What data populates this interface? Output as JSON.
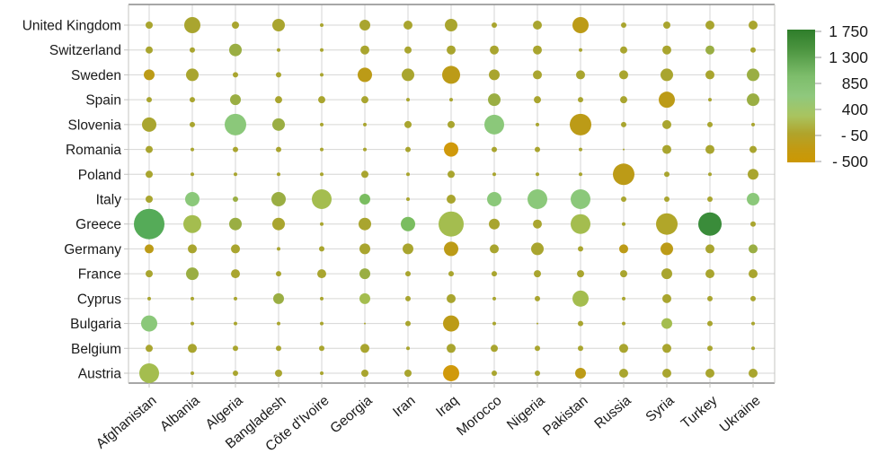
{
  "chart_data": {
    "type": "bubble-matrix",
    "title": "",
    "x_categories": [
      "Afghanistan",
      "Albania",
      "Algeria",
      "Bangladesh",
      "Côte d'Ivoire",
      "Georgia",
      "Iran",
      "Iraq",
      "Morocco",
      "Nigeria",
      "Pakistan",
      "Russia",
      "Syria",
      "Turkey",
      "Ukraine"
    ],
    "y_categories": [
      "United Kingdom",
      "Switzerland",
      "Sweden",
      "Spain",
      "Slovenia",
      "Romania",
      "Poland",
      "Italy",
      "Greece",
      "Germany",
      "France",
      "Cyprus",
      "Bulgaria",
      "Belgium",
      "Austria"
    ],
    "palette": {
      "o": "#a9a52f",
      "o2": "#b1a629",
      "dy": "#bc9b17",
      "or": "#d0990b",
      "og": "#9aae43",
      "yg": "#a4bd4f",
      "lg": "#8bc87a",
      "g2": "#7abd60",
      "g": "#55ab58",
      "dg": "#3a8c3a"
    },
    "bubbles": [
      [
        [
          4,
          "o"
        ],
        [
          9,
          "o"
        ],
        [
          4,
          "o"
        ],
        [
          7,
          "o"
        ],
        [
          2,
          "o"
        ],
        [
          6,
          "o"
        ],
        [
          5,
          "o"
        ],
        [
          7,
          "o"
        ],
        [
          3,
          "o"
        ],
        [
          5,
          "o"
        ],
        [
          9,
          "dy"
        ],
        [
          3,
          "o"
        ],
        [
          4,
          "o"
        ],
        [
          5,
          "o"
        ],
        [
          5,
          "o"
        ]
      ],
      [
        [
          4,
          "o"
        ],
        [
          3,
          "o"
        ],
        [
          7,
          "og"
        ],
        [
          2,
          "o"
        ],
        [
          2,
          "o"
        ],
        [
          5,
          "o"
        ],
        [
          4,
          "o"
        ],
        [
          5,
          "o"
        ],
        [
          5,
          "o"
        ],
        [
          5,
          "o"
        ],
        [
          2,
          "o"
        ],
        [
          4,
          "o"
        ],
        [
          5,
          "o"
        ],
        [
          5,
          "og"
        ],
        [
          3,
          "o"
        ]
      ],
      [
        [
          6,
          "dy"
        ],
        [
          7,
          "o"
        ],
        [
          3,
          "o"
        ],
        [
          3,
          "o"
        ],
        [
          2,
          "o"
        ],
        [
          8,
          "dy"
        ],
        [
          7,
          "o"
        ],
        [
          10,
          "dy"
        ],
        [
          6,
          "o"
        ],
        [
          5,
          "o"
        ],
        [
          5,
          "o"
        ],
        [
          5,
          "o"
        ],
        [
          7,
          "o"
        ],
        [
          5,
          "o"
        ],
        [
          7,
          "og"
        ]
      ],
      [
        [
          3,
          "o"
        ],
        [
          3,
          "o"
        ],
        [
          6,
          "og"
        ],
        [
          4,
          "o"
        ],
        [
          4,
          "o"
        ],
        [
          4,
          "o"
        ],
        [
          2,
          "o"
        ],
        [
          2,
          "o"
        ],
        [
          7,
          "og"
        ],
        [
          4,
          "o"
        ],
        [
          3,
          "o"
        ],
        [
          4,
          "o"
        ],
        [
          9,
          "dy"
        ],
        [
          2,
          "o"
        ],
        [
          7,
          "og"
        ]
      ],
      [
        [
          8,
          "o"
        ],
        [
          3,
          "o"
        ],
        [
          12,
          "lg"
        ],
        [
          7,
          "og"
        ],
        [
          2,
          "o"
        ],
        [
          2,
          "o"
        ],
        [
          4,
          "o"
        ],
        [
          4,
          "o"
        ],
        [
          11,
          "lg"
        ],
        [
          2,
          "o"
        ],
        [
          12,
          "dy"
        ],
        [
          3,
          "o"
        ],
        [
          5,
          "o"
        ],
        [
          3,
          "o"
        ],
        [
          2,
          "o"
        ]
      ],
      [
        [
          4,
          "o"
        ],
        [
          2,
          "o"
        ],
        [
          3,
          "o"
        ],
        [
          3,
          "o"
        ],
        [
          2,
          "o"
        ],
        [
          2,
          "o"
        ],
        [
          3,
          "o"
        ],
        [
          8,
          "or"
        ],
        [
          3,
          "o"
        ],
        [
          3,
          "o"
        ],
        [
          2,
          "o"
        ],
        [
          1,
          "o"
        ],
        [
          5,
          "o"
        ],
        [
          5,
          "o"
        ],
        [
          4,
          "o"
        ]
      ],
      [
        [
          4,
          "o"
        ],
        [
          2,
          "o"
        ],
        [
          2,
          "o"
        ],
        [
          2,
          "o"
        ],
        [
          2,
          "o"
        ],
        [
          4,
          "o"
        ],
        [
          2,
          "o"
        ],
        [
          4,
          "o"
        ],
        [
          2,
          "o"
        ],
        [
          2,
          "o"
        ],
        [
          2,
          "o"
        ],
        [
          12,
          "dy"
        ],
        [
          3,
          "o"
        ],
        [
          2,
          "o"
        ],
        [
          6,
          "o"
        ]
      ],
      [
        [
          4,
          "o"
        ],
        [
          8,
          "lg"
        ],
        [
          3,
          "og"
        ],
        [
          8,
          "og"
        ],
        [
          11,
          "yg"
        ],
        [
          6,
          "g2"
        ],
        [
          2,
          "o"
        ],
        [
          5,
          "o"
        ],
        [
          8,
          "lg"
        ],
        [
          11,
          "lg"
        ],
        [
          11,
          "lg"
        ],
        [
          3,
          "o"
        ],
        [
          3,
          "o"
        ],
        [
          3,
          "o"
        ],
        [
          7,
          "lg"
        ]
      ],
      [
        [
          17,
          "g"
        ],
        [
          10,
          "yg"
        ],
        [
          7,
          "og"
        ],
        [
          7,
          "o"
        ],
        [
          2,
          "o"
        ],
        [
          7,
          "o"
        ],
        [
          8,
          "g2"
        ],
        [
          14,
          "yg"
        ],
        [
          6,
          "o"
        ],
        [
          5,
          "o"
        ],
        [
          11,
          "yg"
        ],
        [
          2,
          "o"
        ],
        [
          12,
          "o2"
        ],
        [
          13,
          "dg"
        ],
        [
          3,
          "o"
        ]
      ],
      [
        [
          5,
          "dy"
        ],
        [
          5,
          "o"
        ],
        [
          5,
          "o"
        ],
        [
          2,
          "o"
        ],
        [
          3,
          "o"
        ],
        [
          6,
          "o"
        ],
        [
          6,
          "o"
        ],
        [
          8,
          "dy"
        ],
        [
          5,
          "o"
        ],
        [
          7,
          "o"
        ],
        [
          3,
          "o"
        ],
        [
          5,
          "dy"
        ],
        [
          7,
          "dy"
        ],
        [
          5,
          "o"
        ],
        [
          5,
          "og"
        ]
      ],
      [
        [
          4,
          "o"
        ],
        [
          7,
          "og"
        ],
        [
          5,
          "o"
        ],
        [
          3,
          "o"
        ],
        [
          5,
          "o"
        ],
        [
          6,
          "og"
        ],
        [
          3,
          "o"
        ],
        [
          3,
          "o"
        ],
        [
          3,
          "o"
        ],
        [
          4,
          "o"
        ],
        [
          4,
          "o"
        ],
        [
          4,
          "o"
        ],
        [
          6,
          "o"
        ],
        [
          5,
          "o"
        ],
        [
          5,
          "o"
        ]
      ],
      [
        [
          2,
          "o"
        ],
        [
          2,
          "o"
        ],
        [
          2,
          "o"
        ],
        [
          6,
          "og"
        ],
        [
          2,
          "o"
        ],
        [
          6,
          "yg"
        ],
        [
          3,
          "o"
        ],
        [
          5,
          "o"
        ],
        [
          2,
          "o"
        ],
        [
          3,
          "o"
        ],
        [
          9,
          "yg"
        ],
        [
          2,
          "o"
        ],
        [
          5,
          "o"
        ],
        [
          3,
          "o"
        ],
        [
          3,
          "o"
        ]
      ],
      [
        [
          9,
          "lg"
        ],
        [
          2,
          "o"
        ],
        [
          2,
          "o"
        ],
        [
          2,
          "o"
        ],
        [
          2,
          "o"
        ],
        [
          1,
          "o"
        ],
        [
          3,
          "o"
        ],
        [
          9,
          "dy"
        ],
        [
          2,
          "o"
        ],
        [
          1,
          "o"
        ],
        [
          3,
          "o"
        ],
        [
          2,
          "o"
        ],
        [
          6,
          "yg"
        ],
        [
          3,
          "o"
        ],
        [
          2,
          "o"
        ]
      ],
      [
        [
          4,
          "o"
        ],
        [
          5,
          "o"
        ],
        [
          3,
          "o"
        ],
        [
          3,
          "o"
        ],
        [
          3,
          "o"
        ],
        [
          5,
          "o"
        ],
        [
          2,
          "o"
        ],
        [
          5,
          "o"
        ],
        [
          4,
          "o"
        ],
        [
          3,
          "o"
        ],
        [
          3,
          "o"
        ],
        [
          5,
          "o"
        ],
        [
          5,
          "o"
        ],
        [
          3,
          "o"
        ],
        [
          2,
          "o"
        ]
      ],
      [
        [
          11,
          "yg"
        ],
        [
          2,
          "o"
        ],
        [
          3,
          "o"
        ],
        [
          4,
          "o"
        ],
        [
          2,
          "o"
        ],
        [
          4,
          "o"
        ],
        [
          4,
          "o"
        ],
        [
          9,
          "or"
        ],
        [
          3,
          "o"
        ],
        [
          3,
          "o"
        ],
        [
          6,
          "dy"
        ],
        [
          5,
          "o"
        ],
        [
          5,
          "o"
        ],
        [
          5,
          "o"
        ],
        [
          5,
          "o"
        ]
      ]
    ],
    "legend": {
      "tick_labels": [
        "1 750",
        "1 300",
        "850",
        "400",
        "- 50",
        "- 500"
      ],
      "tick_values": [
        1750,
        1300,
        850,
        400,
        -50,
        -500
      ],
      "gradient_stops": [
        [
          0.0,
          "#2e7d2a"
        ],
        [
          0.15,
          "#4c9540"
        ],
        [
          0.35,
          "#7dbd6b"
        ],
        [
          0.5,
          "#8fc87d"
        ],
        [
          0.65,
          "#a9c45f"
        ],
        [
          0.78,
          "#b0a42c"
        ],
        [
          0.9,
          "#c39a11"
        ],
        [
          1.0,
          "#cc9803"
        ]
      ],
      "position": "right"
    },
    "grid": true,
    "grid_color": "#d6d6d4",
    "border_color_top_bottom": "#8a8a8a",
    "border_color_sides": "#c4c4c2",
    "value_range": [
      -500,
      1750
    ]
  }
}
